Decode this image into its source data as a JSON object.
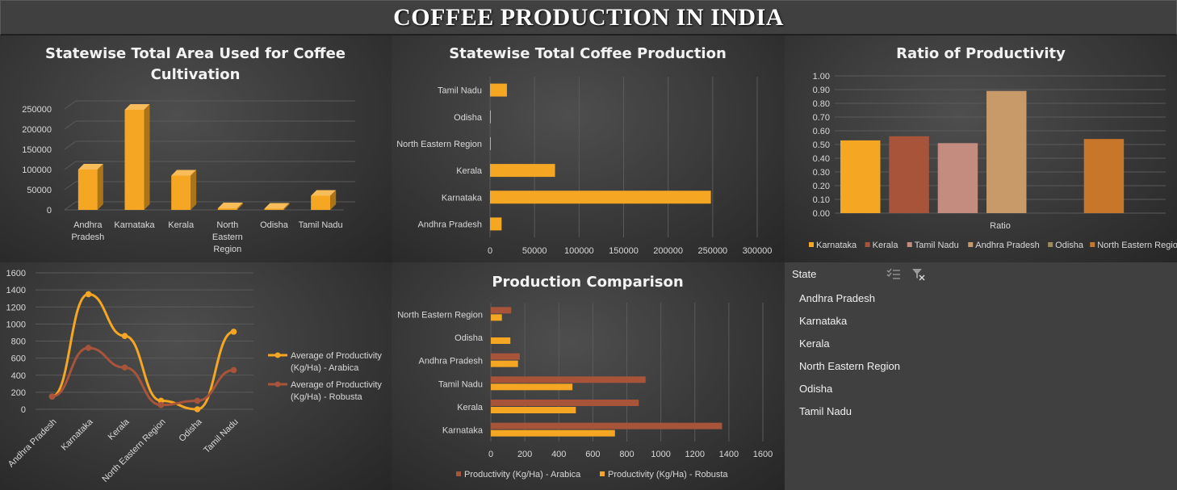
{
  "dashboard_title": "COFFEE PRODUCTION IN INDIA",
  "colors": {
    "orange": "#f5a623",
    "brown": "#a8543a",
    "background": "#2b2b2b"
  },
  "slicer": {
    "title": "State",
    "multi_select_icon": "multi-select-icon",
    "clear_filter_icon": "clear-filter-icon",
    "items": [
      "Andhra Pradesh",
      "Karnataka",
      "Kerala",
      "North Eastern Region",
      "Odisha",
      "Tamil Nadu"
    ]
  },
  "chart_data": [
    {
      "type": "bar",
      "title": "Statewise Total Area Used for Coffee Cultivation",
      "categories": [
        "Andhra Pradesh",
        "Karnataka",
        "Kerala",
        "North Eastern Region",
        "Odisha",
        "Tamil Nadu"
      ],
      "values": [
        100000,
        248000,
        85000,
        4000,
        3000,
        35000
      ],
      "ylim": [
        0,
        250000
      ],
      "yticks": [
        "0",
        "50000",
        "100000",
        "150000",
        "200000",
        "250000"
      ],
      "grid": true,
      "style": "3d-column"
    },
    {
      "type": "bar",
      "orientation": "horizontal",
      "title": "Statewise Total Coffee Production",
      "categories": [
        "Andhra Pradesh",
        "Karnataka",
        "Kerala",
        "North Eastern Region",
        "Odisha",
        "Tamil Nadu"
      ],
      "values": [
        13000,
        248000,
        73000,
        500,
        400,
        19000
      ],
      "xlim": [
        0,
        300000
      ],
      "xticks": [
        "0",
        "50000",
        "100000",
        "150000",
        "200000",
        "250000",
        "300000"
      ],
      "grid": true
    },
    {
      "type": "bar",
      "title": "Ratio of Productivity",
      "categories": [
        "Ratio"
      ],
      "series": [
        {
          "name": "Karnataka",
          "values": [
            0.53
          ],
          "color": "#f5a623"
        },
        {
          "name": "Kerala",
          "values": [
            0.56
          ],
          "color": "#a8543a"
        },
        {
          "name": "Tamil Nadu",
          "values": [
            0.51
          ],
          "color": "#c48c7e"
        },
        {
          "name": "Andhra Pradesh",
          "values": [
            0.89
          ],
          "color": "#c89a6a"
        },
        {
          "name": "Odisha",
          "values": [
            null
          ],
          "color": "#9b8a5a"
        },
        {
          "name": "North Eastern Region",
          "values": [
            0.54
          ],
          "color": "#c8772a"
        }
      ],
      "ylim": [
        0,
        1
      ],
      "yticks": [
        "0.00",
        "0.10",
        "0.20",
        "0.30",
        "0.40",
        "0.50",
        "0.60",
        "0.70",
        "0.80",
        "0.90",
        "1.00"
      ],
      "grid": true,
      "legend": "bottom"
    },
    {
      "type": "line",
      "categories": [
        "Andhra Pradesh",
        "Karnataka",
        "Kerala",
        "North Eastern Region",
        "Odisha",
        "Tamil Nadu"
      ],
      "series": [
        {
          "name": "Average of Productivity (Kg/Ha) - Arabica",
          "values": [
            150,
            1350,
            860,
            100,
            0,
            910
          ],
          "color": "#f5a623"
        },
        {
          "name": "Average of Productivity (Kg/Ha) - Robusta",
          "values": [
            150,
            720,
            490,
            50,
            100,
            460
          ],
          "color": "#a8543a"
        }
      ],
      "ylim": [
        0,
        1600
      ],
      "yticks": [
        "0",
        "200",
        "400",
        "600",
        "800",
        "1000",
        "1200",
        "1400",
        "1600"
      ],
      "grid": true,
      "legend": "right"
    },
    {
      "type": "bar",
      "orientation": "horizontal",
      "title": "Production Comparison",
      "categories": [
        "Karnataka",
        "Kerala",
        "Tamil Nadu",
        "Andhra Pradesh",
        "Odisha",
        "North Eastern Region"
      ],
      "series": [
        {
          "name": "Productivity (Kg/Ha) - Arabica",
          "values": [
            1360,
            870,
            910,
            170,
            0,
            120
          ],
          "color": "#a8543a"
        },
        {
          "name": "Productivity (Kg/Ha) - Robusta",
          "values": [
            730,
            500,
            480,
            160,
            115,
            65
          ],
          "color": "#f5a623"
        }
      ],
      "xlim": [
        0,
        1600
      ],
      "xticks": [
        "0",
        "200",
        "400",
        "600",
        "800",
        "1000",
        "1200",
        "1400",
        "1600"
      ],
      "grid": true,
      "legend": "bottom"
    }
  ]
}
